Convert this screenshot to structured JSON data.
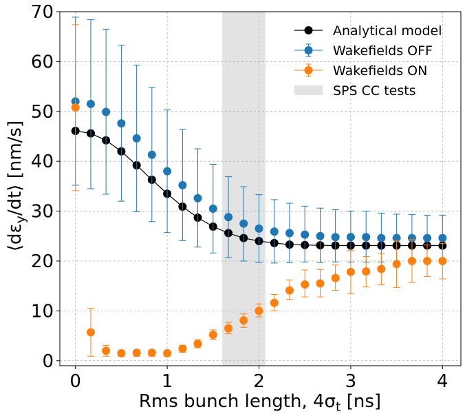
{
  "chart_data": {
    "type": "line",
    "xlabel": "Rms bunch length, 4σₜ [ns]",
    "ylabel": "⟨dεᵧ/dt⟩ [nm/s]",
    "xlim": [
      -0.17,
      4.2
    ],
    "ylim": [
      -1,
      70
    ],
    "xticks": [
      0,
      1,
      2,
      3,
      4
    ],
    "yticks": [
      0,
      10,
      20,
      30,
      40,
      50,
      60,
      70
    ],
    "grid": true,
    "legend_position": "top-right",
    "shaded_region": {
      "name": "SPS CC tests",
      "x0": 1.6,
      "x1": 2.07,
      "color": "#e3e3e3"
    },
    "x": [
      0,
      0.167,
      0.333,
      0.5,
      0.667,
      0.833,
      1.0,
      1.167,
      1.333,
      1.5,
      1.667,
      1.833,
      2.0,
      2.167,
      2.333,
      2.5,
      2.667,
      2.833,
      3.0,
      3.167,
      3.333,
      3.5,
      3.667,
      3.833,
      4.0
    ],
    "series": [
      {
        "name": "Analytical model",
        "color": "#000000",
        "style": "line-marker",
        "values": [
          46.1,
          45.6,
          44.2,
          42.0,
          39.2,
          36.3,
          33.5,
          30.9,
          28.7,
          26.9,
          25.6,
          24.6,
          24.0,
          23.6,
          23.3,
          23.2,
          23.15,
          23.1,
          23.1,
          23.1,
          23.1,
          23.1,
          23.1,
          23.1,
          23.1
        ]
      },
      {
        "name": "Wakefields OFF",
        "color": "#1f77b4",
        "style": "errorbar",
        "values": [
          52.0,
          51.5,
          49.9,
          47.6,
          44.6,
          41.3,
          38.0,
          35.2,
          32.6,
          30.5,
          28.8,
          27.5,
          26.5,
          25.9,
          25.6,
          25.3,
          25.0,
          24.8,
          24.8,
          24.8,
          24.6,
          24.6,
          24.6,
          24.6,
          24.6
        ],
        "err_low": [
          35.2,
          34.5,
          33.4,
          32.0,
          29.9,
          27.9,
          25.7,
          24.1,
          22.8,
          21.6,
          20.7,
          20.0,
          19.7,
          19.6,
          19.7,
          19.8,
          19.7,
          19.8,
          19.8,
          19.8,
          19.8,
          19.8,
          19.8,
          19.8,
          19.8
        ],
        "err_high": [
          68.9,
          68.4,
          66.5,
          63.3,
          59.3,
          54.8,
          50.3,
          46.4,
          42.5,
          39.4,
          36.9,
          34.9,
          33.3,
          32.3,
          31.6,
          31.0,
          30.6,
          30.3,
          30.0,
          30.0,
          29.6,
          29.4,
          29.3,
          29.2,
          29.2
        ]
      },
      {
        "name": "Wakefields ON",
        "color": "#ff7f0e",
        "style": "errorbar",
        "values": [
          50.8,
          5.7,
          2.0,
          1.5,
          1.6,
          1.6,
          1.5,
          2.4,
          3.4,
          5.2,
          6.5,
          8.1,
          10.0,
          11.6,
          14.1,
          15.3,
          15.5,
          16.6,
          17.8,
          17.9,
          18.4,
          19.4,
          20.0,
          20.0,
          20.0
        ],
        "err_low": [
          34.1,
          0.9,
          0.9,
          0.9,
          0.9,
          0.9,
          0.9,
          1.7,
          2.6,
          4.3,
          5.4,
          6.7,
          8.8,
          10.0,
          12.3,
          12.8,
          12.8,
          14.1,
          13.5,
          14.8,
          15.2,
          14.7,
          15.7,
          16.9,
          16.4
        ],
        "err_high": [
          67.4,
          10.5,
          3.1,
          2.0,
          2.1,
          2.1,
          2.0,
          3.1,
          4.2,
          6.2,
          7.7,
          9.4,
          11.4,
          13.3,
          16.2,
          18.2,
          18.3,
          19.2,
          22.1,
          20.9,
          21.5,
          24.1,
          24.3,
          23.2,
          23.5
        ]
      }
    ]
  }
}
